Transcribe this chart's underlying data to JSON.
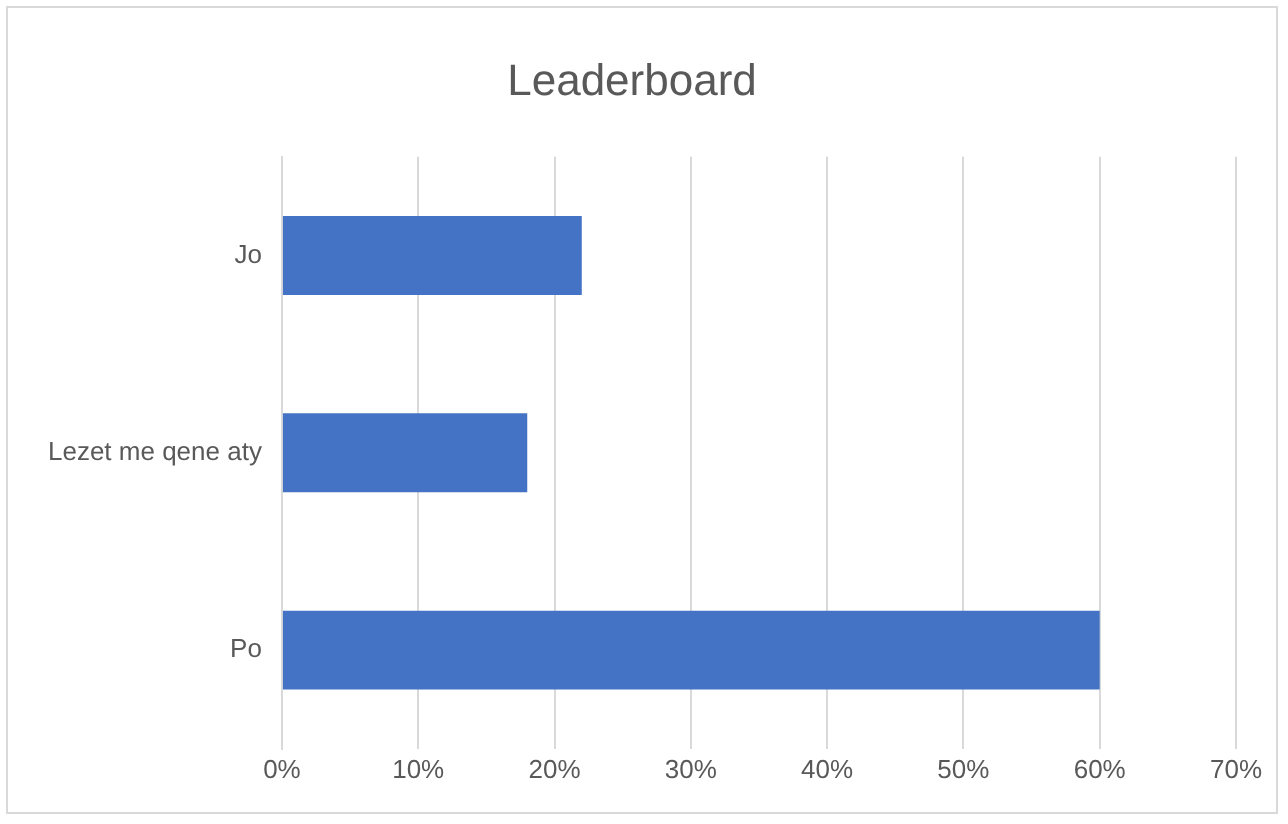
{
  "chart_data": {
    "type": "bar",
    "orientation": "horizontal",
    "title": "Leaderboard",
    "categories": [
      "Jo",
      "Lezet me qene aty",
      "Po"
    ],
    "values": [
      22,
      18,
      60
    ],
    "color": "#4472c4",
    "xlim": [
      0,
      70
    ],
    "xticks": [
      {
        "value": 0,
        "label": "0%"
      },
      {
        "value": 10,
        "label": "10%"
      },
      {
        "value": 20,
        "label": "20%"
      },
      {
        "value": 30,
        "label": "30%"
      },
      {
        "value": 40,
        "label": "40%"
      },
      {
        "value": 50,
        "label": "50%"
      },
      {
        "value": 60,
        "label": "60%"
      },
      {
        "value": 70,
        "label": "70%"
      }
    ],
    "grid": "x",
    "legend": false
  }
}
